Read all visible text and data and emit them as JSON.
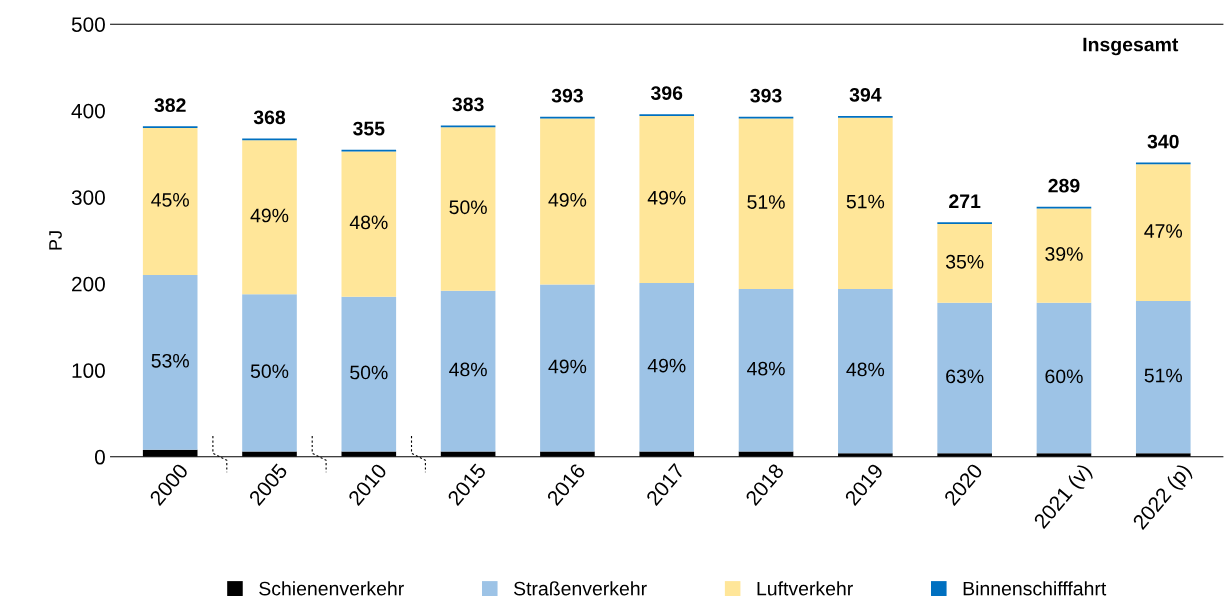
{
  "chart_data": {
    "type": "bar",
    "stacked": true,
    "ylabel": "PJ",
    "categories": [
      "2000",
      "2005",
      "2010",
      "2015",
      "2016",
      "2017",
      "2018",
      "2019",
      "2020",
      "2021 (v)",
      "2022 (p)"
    ],
    "series": [
      {
        "name": "Schienenverkehr",
        "color": "#000000",
        "values": [
          8,
          6,
          6,
          6,
          6,
          6,
          6,
          4,
          4,
          4,
          4
        ]
      },
      {
        "name": "Straßenverkehr",
        "color": "#9dc3e6",
        "values": [
          202,
          182,
          179,
          186,
          193,
          195,
          188,
          190,
          174,
          174,
          176
        ]
      },
      {
        "name": "Luftverkehr",
        "color": "#ffe699",
        "values": [
          170,
          178,
          168,
          189,
          192,
          193,
          197,
          198,
          91,
          109,
          158
        ]
      },
      {
        "name": "Binnenschifffahrt",
        "color": "#0070c0",
        "values": [
          2,
          2,
          2,
          2,
          2,
          2,
          2,
          2,
          2,
          2,
          2
        ]
      }
    ],
    "totals": [
      "382",
      "368",
      "355",
      "383",
      "393",
      "396",
      "393",
      "394",
      "271",
      "289",
      "340"
    ],
    "annotations": [
      "Insgesamt",
      "53%",
      "50%",
      "50%",
      "48%",
      "49%",
      "49%",
      "48%",
      "48%",
      "63%",
      "60%",
      "51%",
      "45%",
      "49%",
      "48%",
      "50%",
      "49%",
      "49%",
      "51%",
      "51%",
      "35%",
      "39%",
      "47%"
    ],
    "ylim": [
      0,
      500
    ],
    "yticks": [
      0,
      100,
      200,
      300,
      400,
      500
    ],
    "grid": false,
    "legend": "bottom"
  }
}
